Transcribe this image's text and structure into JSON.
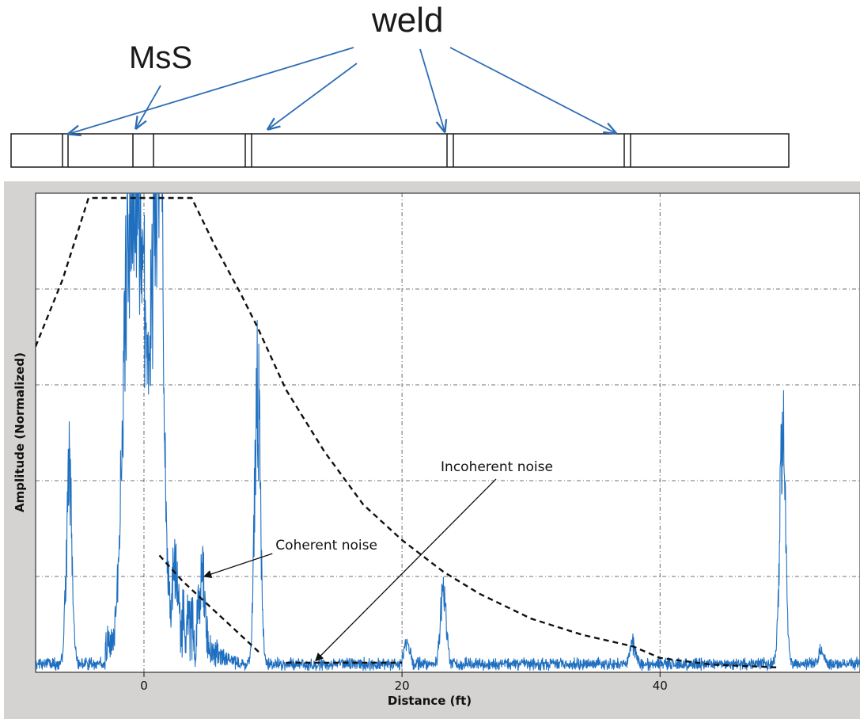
{
  "diagram": {
    "weld_label": "weld",
    "mss_label": "MsS"
  },
  "chart_data": {
    "type": "line",
    "title": "",
    "xlabel": "Distance (ft)",
    "ylabel": "Amplitude (Normalized)",
    "xlim": [
      -8.4,
      55.5
    ],
    "ylim": [
      0,
      5
    ],
    "xticks": [
      0,
      20,
      40
    ],
    "yticks_shown": false,
    "grid": true,
    "series": [
      {
        "style": "solid",
        "color": "#1f6fc0",
        "peaks": [
          {
            "x": -5.8,
            "y": 2.55
          },
          {
            "x": -1.2,
            "y": 5.0
          },
          {
            "x": -0.3,
            "y": 5.0
          },
          {
            "x": 0.9,
            "y": 5.0
          },
          {
            "x": 1.3,
            "y": 3.5
          },
          {
            "x": 2.4,
            "y": 0.85
          },
          {
            "x": 4.5,
            "y": 0.75
          },
          {
            "x": 8.8,
            "y": 3.75
          },
          {
            "x": 20.4,
            "y": 0.28
          },
          {
            "x": 23.2,
            "y": 1.0
          },
          {
            "x": 37.9,
            "y": 0.28
          },
          {
            "x": 49.5,
            "y": 3.2
          },
          {
            "x": 52.5,
            "y": 0.18
          }
        ]
      },
      {
        "style": "dashed",
        "color": "#111111",
        "points": [
          [
            -8.4,
            3.4
          ],
          [
            -6.3,
            4.1
          ],
          [
            -4.3,
            4.95
          ],
          [
            3.7,
            4.95
          ],
          [
            5.5,
            4.45
          ],
          [
            7.5,
            3.95
          ],
          [
            8.8,
            3.6
          ],
          [
            11.0,
            2.95
          ],
          [
            14.0,
            2.3
          ],
          [
            17.0,
            1.75
          ],
          [
            20.0,
            1.38
          ],
          [
            23.2,
            1.05
          ],
          [
            26.0,
            0.82
          ],
          [
            30.0,
            0.56
          ],
          [
            34.0,
            0.39
          ],
          [
            37.9,
            0.27
          ],
          [
            40.0,
            0.15
          ],
          [
            44.0,
            0.08
          ],
          [
            49.3,
            0.05
          ]
        ]
      },
      {
        "style": "dashed",
        "color": "#111111",
        "points": [
          [
            1.2,
            1.22
          ],
          [
            3.0,
            0.95
          ],
          [
            5.0,
            0.7
          ],
          [
            7.0,
            0.45
          ],
          [
            9.0,
            0.2
          ]
        ]
      },
      {
        "style": "dashed",
        "color": "#111111",
        "points": [
          [
            11.0,
            0.1
          ],
          [
            20.0,
            0.1
          ]
        ]
      }
    ],
    "annotations": [
      {
        "text": "Coherent noise",
        "x": 10.2,
        "y": 1.28
      },
      {
        "text": "Incoherent noise",
        "x": 23.0,
        "y": 2.1
      }
    ]
  }
}
